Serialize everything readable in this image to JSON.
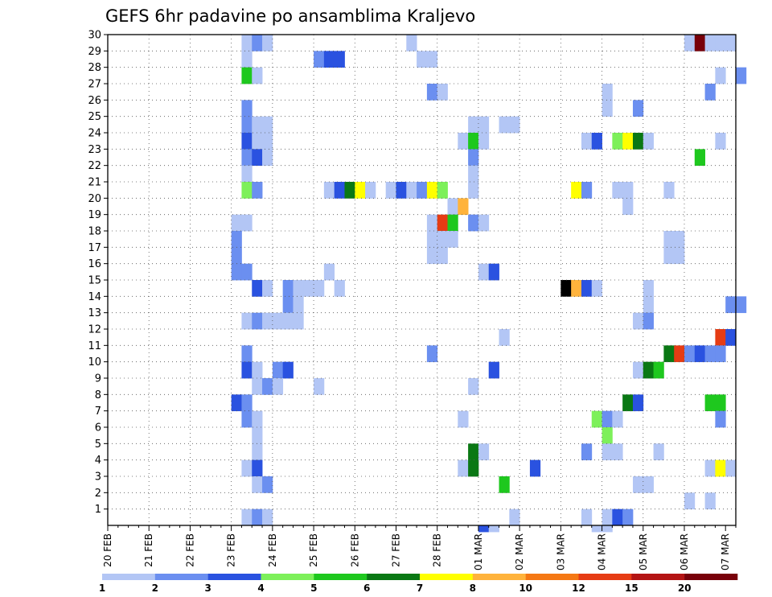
{
  "chart_data": {
    "type": "heatmap",
    "title": "GEFS 6hr padavine po ansamblima Kraljevo",
    "x_tick_labels": [
      "20 FEB",
      "21 FEB",
      "22 FEB",
      "23 FEB",
      "24 FEB",
      "25 FEB",
      "26 FEB",
      "27 FEB",
      "28 FEB",
      "01 MAR",
      "02 MAR",
      "03 MAR",
      "04 MAR",
      "05 MAR",
      "06 MAR",
      "07 MAR"
    ],
    "y_tick_labels": [
      "1",
      "2",
      "3",
      "4",
      "5",
      "6",
      "7",
      "8",
      "9",
      "10",
      "11",
      "12",
      "13",
      "14",
      "15",
      "16",
      "17",
      "18",
      "19",
      "20",
      "21",
      "22",
      "23",
      "24",
      "25",
      "26",
      "27",
      "28",
      "29",
      "30"
    ],
    "x_unit": "6-hour step (4 per day) from 20 FEB 00Z",
    "y_unit": "ensemble member",
    "xlim": [
      0,
      61
    ],
    "ylim": [
      0,
      30
    ],
    "grid": true,
    "colorbar": {
      "labels": [
        "1",
        "2",
        "3",
        "4",
        "5",
        "6",
        "7",
        "8",
        "10",
        "12",
        "15",
        "20"
      ],
      "colors": [
        "#b3c6f5",
        "#6b8ff0",
        "#2a52e0",
        "#7df05a",
        "#1ec81e",
        "#0a7814",
        "#ffff00",
        "#ffb33c",
        "#f57814",
        "#e63c14",
        "#b41414",
        "#78000a"
      ]
    },
    "cells": [
      [
        13,
        30,
        1
      ],
      [
        14,
        30,
        2
      ],
      [
        15,
        30,
        1
      ],
      [
        29,
        30,
        1
      ],
      [
        56,
        30,
        1
      ],
      [
        57,
        30,
        12
      ],
      [
        58,
        30,
        1
      ],
      [
        59,
        30,
        1
      ],
      [
        60,
        30,
        1
      ],
      [
        13,
        29,
        1
      ],
      [
        20,
        29,
        2
      ],
      [
        21,
        29,
        3
      ],
      [
        22,
        29,
        3
      ],
      [
        30,
        29,
        1
      ],
      [
        31,
        29,
        1
      ],
      [
        13,
        28,
        5
      ],
      [
        14,
        28,
        1
      ],
      [
        59,
        28,
        1
      ],
      [
        61,
        28,
        2
      ],
      [
        31,
        27,
        2
      ],
      [
        32,
        27,
        1
      ],
      [
        48,
        27,
        1
      ],
      [
        58,
        27,
        2
      ],
      [
        13,
        26,
        2
      ],
      [
        48,
        26,
        1
      ],
      [
        51,
        26,
        2
      ],
      [
        13,
        25,
        2
      ],
      [
        14,
        25,
        1
      ],
      [
        15,
        25,
        1
      ],
      [
        35,
        25,
        1
      ],
      [
        36,
        25,
        1
      ],
      [
        38,
        25,
        1
      ],
      [
        39,
        25,
        1
      ],
      [
        13,
        24,
        3
      ],
      [
        14,
        24,
        1
      ],
      [
        15,
        24,
        1
      ],
      [
        34,
        24,
        1
      ],
      [
        35,
        24,
        5
      ],
      [
        36,
        24,
        1
      ],
      [
        46,
        24,
        1
      ],
      [
        47,
        24,
        3
      ],
      [
        49,
        24,
        4
      ],
      [
        50,
        24,
        7
      ],
      [
        51,
        24,
        6
      ],
      [
        52,
        24,
        1
      ],
      [
        59,
        24,
        1
      ],
      [
        13,
        23,
        2
      ],
      [
        14,
        23,
        3
      ],
      [
        15,
        23,
        1
      ],
      [
        35,
        23,
        2
      ],
      [
        57,
        23,
        5
      ],
      [
        13,
        22,
        1
      ],
      [
        35,
        22,
        1
      ],
      [
        35,
        21,
        1
      ],
      [
        13,
        21,
        4
      ],
      [
        14,
        21,
        2
      ],
      [
        21,
        21,
        1
      ],
      [
        22,
        21,
        3
      ],
      [
        23,
        21,
        6
      ],
      [
        24,
        21,
        7
      ],
      [
        25,
        21,
        1
      ],
      [
        27,
        21,
        1
      ],
      [
        28,
        21,
        3
      ],
      [
        29,
        21,
        1
      ],
      [
        30,
        21,
        2
      ],
      [
        31,
        21,
        7
      ],
      [
        32,
        21,
        4
      ],
      [
        45,
        21,
        7
      ],
      [
        46,
        21,
        2
      ],
      [
        49,
        21,
        1
      ],
      [
        50,
        21,
        1
      ],
      [
        54,
        21,
        1
      ],
      [
        33,
        20,
        1
      ],
      [
        34,
        20,
        8
      ],
      [
        50,
        20,
        1
      ],
      [
        12,
        19,
        1
      ],
      [
        13,
        19,
        1
      ],
      [
        31,
        19,
        1
      ],
      [
        32,
        19,
        10
      ],
      [
        33,
        19,
        5
      ],
      [
        35,
        19,
        2
      ],
      [
        36,
        19,
        1
      ],
      [
        12,
        18,
        2
      ],
      [
        31,
        18,
        1
      ],
      [
        32,
        18,
        1
      ],
      [
        33,
        18,
        1
      ],
      [
        54,
        18,
        1
      ],
      [
        55,
        18,
        1
      ],
      [
        12,
        17,
        2
      ],
      [
        31,
        17,
        1
      ],
      [
        32,
        17,
        1
      ],
      [
        54,
        17,
        1
      ],
      [
        55,
        17,
        1
      ],
      [
        12,
        16,
        2
      ],
      [
        13,
        16,
        2
      ],
      [
        21,
        16,
        1
      ],
      [
        36,
        16,
        1
      ],
      [
        37,
        16,
        3
      ],
      [
        14,
        15,
        3
      ],
      [
        15,
        15,
        1
      ],
      [
        17,
        15,
        2
      ],
      [
        18,
        15,
        1
      ],
      [
        19,
        15,
        1
      ],
      [
        20,
        15,
        1
      ],
      [
        22,
        15,
        1
      ],
      [
        44,
        15,
        15
      ],
      [
        45,
        15,
        8
      ],
      [
        46,
        15,
        3
      ],
      [
        47,
        15,
        1
      ],
      [
        52,
        15,
        1
      ],
      [
        17,
        14,
        2
      ],
      [
        18,
        14,
        1
      ],
      [
        52,
        14,
        1
      ],
      [
        60,
        14,
        2
      ],
      [
        61,
        14,
        2
      ],
      [
        13,
        13,
        1
      ],
      [
        14,
        13,
        2
      ],
      [
        15,
        13,
        1
      ],
      [
        16,
        13,
        1
      ],
      [
        17,
        13,
        1
      ],
      [
        18,
        13,
        1
      ],
      [
        51,
        13,
        1
      ],
      [
        52,
        13,
        2
      ],
      [
        38,
        12,
        1
      ],
      [
        59,
        12,
        10
      ],
      [
        60,
        12,
        3
      ],
      [
        13,
        11,
        2
      ],
      [
        31,
        11,
        2
      ],
      [
        54,
        11,
        6
      ],
      [
        55,
        11,
        10
      ],
      [
        56,
        11,
        2
      ],
      [
        57,
        11,
        3
      ],
      [
        58,
        11,
        2
      ],
      [
        59,
        11,
        2
      ],
      [
        13,
        10,
        3
      ],
      [
        14,
        10,
        1
      ],
      [
        16,
        10,
        2
      ],
      [
        17,
        10,
        3
      ],
      [
        37,
        10,
        3
      ],
      [
        51,
        10,
        1
      ],
      [
        52,
        10,
        6
      ],
      [
        53,
        10,
        5
      ],
      [
        14,
        9,
        1
      ],
      [
        15,
        9,
        2
      ],
      [
        16,
        9,
        1
      ],
      [
        20,
        9,
        1
      ],
      [
        35,
        9,
        1
      ],
      [
        12,
        8,
        3
      ],
      [
        13,
        8,
        2
      ],
      [
        50,
        8,
        6
      ],
      [
        51,
        8,
        3
      ],
      [
        58,
        8,
        5
      ],
      [
        59,
        8,
        5
      ],
      [
        13,
        7,
        2
      ],
      [
        14,
        7,
        1
      ],
      [
        34,
        7,
        1
      ],
      [
        47,
        7,
        4
      ],
      [
        48,
        7,
        2
      ],
      [
        49,
        7,
        1
      ],
      [
        59,
        7,
        2
      ],
      [
        14,
        6,
        1
      ],
      [
        48,
        6,
        4
      ],
      [
        14,
        5,
        1
      ],
      [
        35,
        5,
        6
      ],
      [
        36,
        5,
        1
      ],
      [
        46,
        5,
        2
      ],
      [
        48,
        5,
        1
      ],
      [
        49,
        5,
        1
      ],
      [
        53,
        5,
        1
      ],
      [
        13,
        4,
        1
      ],
      [
        14,
        4,
        3
      ],
      [
        34,
        4,
        1
      ],
      [
        35,
        4,
        6
      ],
      [
        41,
        4,
        3
      ],
      [
        58,
        4,
        1
      ],
      [
        59,
        4,
        7
      ],
      [
        60,
        4,
        1
      ],
      [
        14,
        3,
        1
      ],
      [
        15,
        3,
        2
      ],
      [
        38,
        3,
        5
      ],
      [
        51,
        3,
        1
      ],
      [
        52,
        3,
        1
      ],
      [
        56,
        2,
        1
      ],
      [
        58,
        2,
        1
      ],
      [
        13,
        1,
        1
      ],
      [
        14,
        1,
        2
      ],
      [
        15,
        1,
        1
      ],
      [
        39,
        1,
        1
      ],
      [
        46,
        1,
        1
      ],
      [
        48,
        1,
        1
      ],
      [
        49,
        1,
        3
      ],
      [
        50,
        1,
        2
      ],
      [
        36,
        0,
        3
      ],
      [
        37,
        0,
        1
      ],
      [
        47,
        0,
        1
      ],
      [
        48,
        0,
        1
      ]
    ]
  }
}
